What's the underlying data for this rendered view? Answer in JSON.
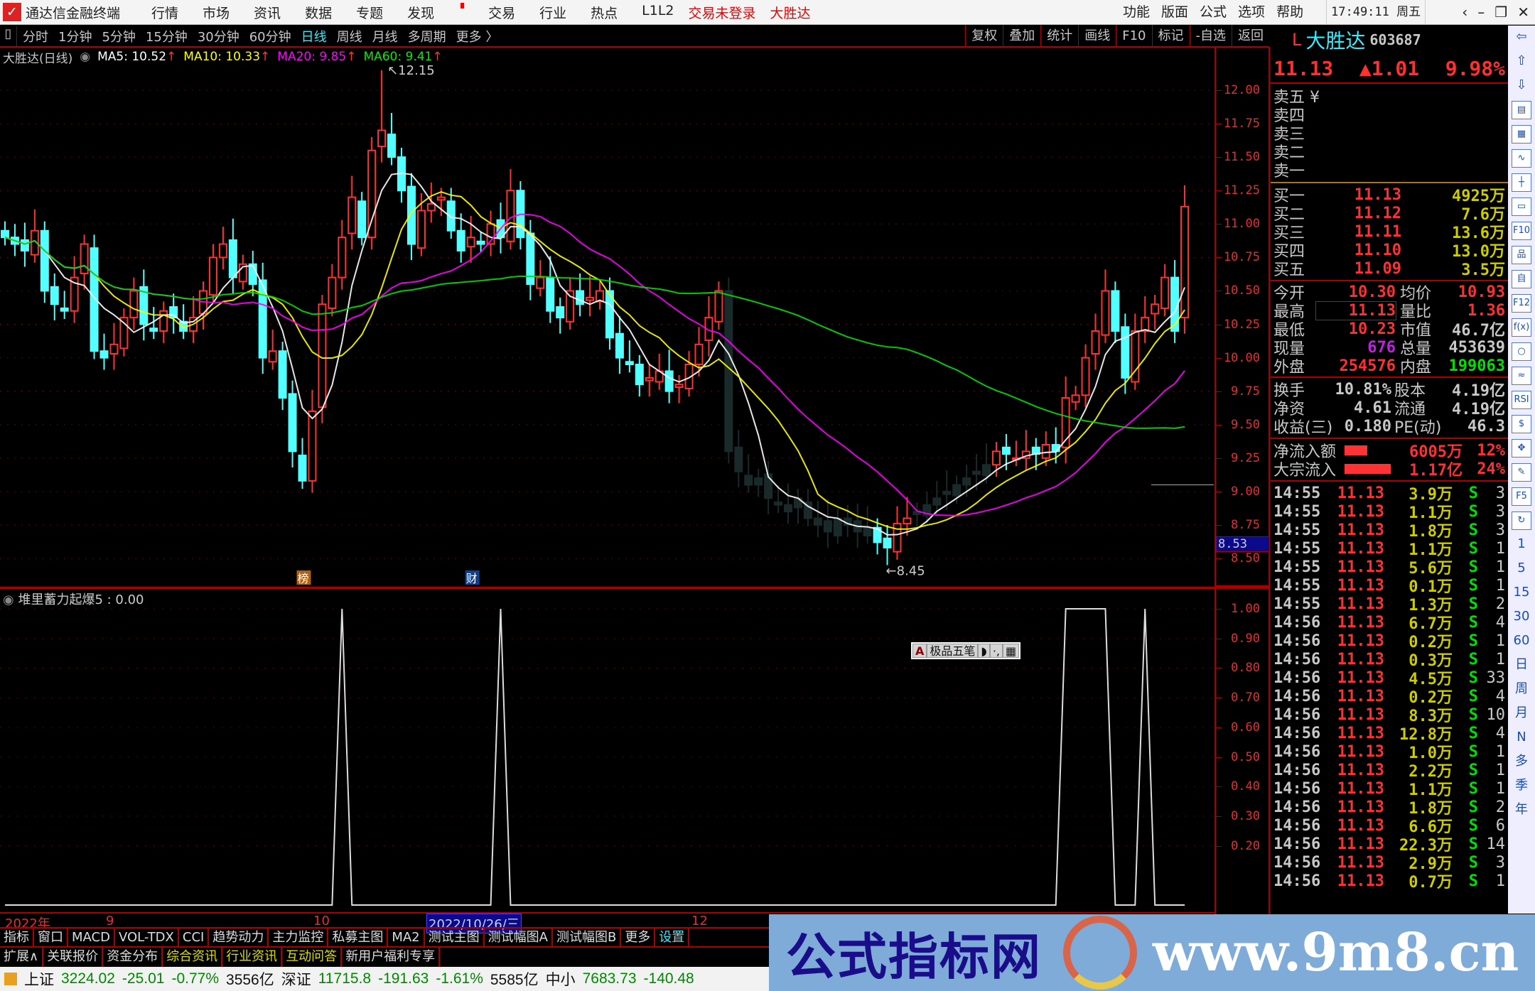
{
  "app": {
    "title": "通达信金融终端",
    "menu": [
      "行情",
      "市场",
      "资讯",
      "数据",
      "专题",
      "发现",
      "交易",
      "行业",
      "热点",
      "L1L2"
    ],
    "login_status": "交易未登录",
    "stock_short": "大胜达",
    "right_menu": [
      "功能",
      "版面",
      "公式",
      "选项",
      "帮助"
    ],
    "time": "17:49:11",
    "weekday": "周五"
  },
  "toolbar": {
    "periods": [
      "分时",
      "1分钟",
      "5分钟",
      "15分钟",
      "30分钟",
      "60分钟",
      "日线",
      "周线",
      "月线",
      "多周期",
      "更多 〉"
    ],
    "active": "日线",
    "tools": [
      "复权",
      "叠加",
      "统计",
      "画线",
      "F10",
      "标记",
      "-自选",
      "返回"
    ]
  },
  "legend": {
    "name": "大胜达(日线)",
    "ma5": "MA5: 10.52",
    "ma10": "MA10: 10.33",
    "ma20": "MA20: 9.85",
    "ma60": "MA60: 9.41"
  },
  "colors": {
    "up": "#ff3232",
    "down": "#54ffff",
    "ma5": "#ffffff",
    "ma10": "#ffff00",
    "ma20": "#ff00ff",
    "ma60": "#00e000",
    "axis": "#e03030",
    "border": "#aa0000"
  },
  "chart_data": {
    "type": "candlestick",
    "price_axis": [
      "12.00",
      "11.75",
      "11.50",
      "11.25",
      "11.00",
      "10.75",
      "10.50",
      "10.25",
      "10.00",
      "9.75",
      "9.50",
      "9.25",
      "9.00",
      "8.75",
      "8.50"
    ],
    "ylim": [
      8.5,
      12.0
    ],
    "high_label": "12.15",
    "low_label": "8.45",
    "current_price_marker": "8.53",
    "closes": [
      10.9,
      10.85,
      10.8,
      10.95,
      10.5,
      10.4,
      10.35,
      10.6,
      10.85,
      10.05,
      10.0,
      10.1,
      10.3,
      10.5,
      10.25,
      10.2,
      10.35,
      10.3,
      10.2,
      10.3,
      10.5,
      10.75,
      10.85,
      10.6,
      10.7,
      10.55,
      10.0,
      10.05,
      9.7,
      9.3,
      9.08,
      9.6,
      10.4,
      10.6,
      10.9,
      11.2,
      10.9,
      11.55,
      11.7,
      11.5,
      11.25,
      10.85,
      11.1,
      11.15,
      11.2,
      10.95,
      10.8,
      10.9,
      10.85,
      11.0,
      10.9,
      11.25,
      10.9,
      10.55,
      10.6,
      10.35,
      10.3,
      10.5,
      10.4,
      10.45,
      10.5,
      10.15,
      10.0,
      9.95,
      9.8,
      9.85,
      9.9,
      9.75,
      9.8,
      9.95,
      10.1,
      10.3,
      10.5,
      9.3,
      9.15,
      9.05,
      9.1,
      8.95,
      8.9,
      8.85,
      8.95,
      8.8,
      8.75,
      8.7,
      8.8,
      8.75,
      8.7,
      8.73,
      8.62,
      8.58,
      8.76,
      8.8,
      8.85,
      8.9,
      8.95,
      9.0,
      9.05,
      9.1,
      9.15,
      9.2,
      9.3,
      9.28,
      9.25,
      9.3,
      9.28,
      9.35,
      9.3,
      9.7,
      9.72,
      10.0,
      10.2,
      10.5,
      10.2,
      9.85,
      10.2,
      10.3,
      10.4,
      10.6,
      10.2,
      11.13
    ],
    "markers": [
      {
        "label": "榜",
        "color": "#b06010"
      },
      {
        "label": "财",
        "color": "#104090"
      }
    ],
    "indicator": {
      "title": "堆里蓄力起爆5 : 0.00",
      "axis": [
        "1.00",
        "0.90",
        "0.80",
        "0.70",
        "0.60",
        "0.50",
        "0.40",
        "0.30",
        "0.20"
      ],
      "ylim": [
        0,
        1
      ],
      "signal_days": [
        34,
        50,
        107,
        108,
        109,
        110,
        111,
        115
      ]
    },
    "date_axis": [
      "2022年",
      "9",
      "10",
      "2022/10/26/三",
      "12"
    ]
  },
  "ime": {
    "labels": [
      "A",
      "极品五笔",
      "◗",
      "·,",
      "▦"
    ]
  },
  "bottom_tabs1": [
    "指标",
    "窗口",
    "MACD",
    "VOL-TDX",
    "CCI",
    "趋势动力",
    "主力监控",
    "私募主图",
    "MA2",
    "测试主图",
    "测试幅图A",
    "测试幅图B",
    "更多",
    "设置"
  ],
  "bottom_tabs2": [
    "扩展∧",
    "关联报价",
    "资金分布",
    "综合资讯",
    "行业资讯",
    "互动问答",
    "新用户福利专享"
  ],
  "status": {
    "sh_label": "上证",
    "sh_val": "3224.02",
    "sh_chg": "-25.01",
    "sh_pct": "-0.77%",
    "sh_amt": "3556亿",
    "sz_label": "深证",
    "sz_val": "11715.8",
    "sz_chg": "-191.63",
    "sz_pct": "-1.61%",
    "sz_amt": "5585亿",
    "zx_label": "中小",
    "zx_val": "7683.73",
    "zx_chg": "-140.48"
  },
  "quote": {
    "flag": "L",
    "name": "大胜达",
    "code": "603687",
    "price": "11.13",
    "change": "▲1.01",
    "pct": "9.98%",
    "sell": [
      {
        "label": "卖五 ¥"
      },
      {
        "label": "卖四"
      },
      {
        "label": "卖三"
      },
      {
        "label": "卖二"
      },
      {
        "label": "卖一"
      }
    ],
    "buy": [
      {
        "label": "买一",
        "price": "11.13",
        "vol": "4925万"
      },
      {
        "label": "买二",
        "price": "11.12",
        "vol": "7.6万"
      },
      {
        "label": "买三",
        "price": "11.11",
        "vol": "13.6万"
      },
      {
        "label": "买四",
        "price": "11.10",
        "vol": "13.0万"
      },
      {
        "label": "买五",
        "price": "11.09",
        "vol": "3.5万"
      }
    ],
    "stats": [
      {
        "l1": "今开",
        "v1": "10.30",
        "c1": "r",
        "l2": "均价",
        "v2": "10.93",
        "c2": "r"
      },
      {
        "l1": "最高",
        "v1": "11.13",
        "c1": "r",
        "l2": "量比",
        "v2": "1.36",
        "c2": "r"
      },
      {
        "l1": "最低",
        "v1": "10.23",
        "c1": "r",
        "l2": "市值",
        "v2": "46.7亿",
        "c2": "wh"
      },
      {
        "l1": "现量",
        "v1": "676",
        "c1": "pu",
        "l2": "总量",
        "v2": "453639",
        "c2": "wh"
      },
      {
        "l1": "外盘",
        "v1": "254576",
        "c1": "r",
        "l2": "内盘",
        "v2": "199063",
        "c2": "gr"
      }
    ],
    "fund": [
      {
        "l1": "换手",
        "v1": "10.81%",
        "l2": "股本",
        "v2": "4.19亿"
      },
      {
        "l1": "净资",
        "v1": "4.61",
        "l2": "流通",
        "v2": "4.19亿"
      },
      {
        "l1": "收益(三)",
        "v1": "0.180",
        "l2": "PE(动)",
        "v2": "46.3"
      }
    ],
    "flow": [
      {
        "label": "净流入额",
        "val": "6005万",
        "pct": "12%",
        "bar": 0.12
      },
      {
        "label": "大宗流入",
        "val": "1.17亿",
        "pct": "24%",
        "bar": 0.24
      }
    ],
    "ticks": [
      [
        "14:55",
        "11.13",
        "3.9万",
        "S",
        "3"
      ],
      [
        "14:55",
        "11.13",
        "1.1万",
        "S",
        "3"
      ],
      [
        "14:55",
        "11.13",
        "1.8万",
        "S",
        "3"
      ],
      [
        "14:55",
        "11.13",
        "1.1万",
        "S",
        "1"
      ],
      [
        "14:55",
        "11.13",
        "5.6万",
        "S",
        "1"
      ],
      [
        "14:55",
        "11.13",
        "0.1万",
        "S",
        "1"
      ],
      [
        "14:55",
        "11.13",
        "1.3万",
        "S",
        "2"
      ],
      [
        "14:56",
        "11.13",
        "6.7万",
        "S",
        "4"
      ],
      [
        "14:56",
        "11.13",
        "0.2万",
        "S",
        "1"
      ],
      [
        "14:56",
        "11.13",
        "0.3万",
        "S",
        "1"
      ],
      [
        "14:56",
        "11.13",
        "4.5万",
        "S",
        "33"
      ],
      [
        "14:56",
        "11.13",
        "0.2万",
        "S",
        "4"
      ],
      [
        "14:56",
        "11.13",
        "8.3万",
        "S",
        "10"
      ],
      [
        "14:56",
        "11.13",
        "12.8万",
        "S",
        "4"
      ],
      [
        "14:56",
        "11.13",
        "1.0万",
        "S",
        "1"
      ],
      [
        "14:56",
        "11.13",
        "2.2万",
        "S",
        "1"
      ],
      [
        "14:56",
        "11.13",
        "1.1万",
        "S",
        "1"
      ],
      [
        "14:56",
        "11.13",
        "1.8万",
        "S",
        "2"
      ],
      [
        "14:56",
        "11.13",
        "6.6万",
        "S",
        "6"
      ],
      [
        "14:56",
        "11.13",
        "22.3万",
        "S",
        "14"
      ],
      [
        "14:56",
        "11.13",
        "2.9万",
        "S",
        "3"
      ],
      [
        "14:56",
        "11.13",
        "0.7万",
        "S",
        "1"
      ]
    ]
  },
  "side_icons": [
    "⇦",
    "⇧",
    "⇩",
    "▤",
    "▦",
    "∿",
    "┼",
    "▭",
    "F10",
    "品",
    "自",
    "F12",
    "f(x)",
    "○",
    "≈",
    "RSI",
    "$",
    "✥",
    "✎",
    "F5",
    "↻"
  ],
  "side_periods": [
    "1",
    "5",
    "15",
    "30",
    "60",
    "日",
    "周",
    "月",
    "N",
    "多",
    "季",
    "年"
  ],
  "watermark": {
    "text": "公式指标网",
    "url": "www.9m8.cn"
  }
}
